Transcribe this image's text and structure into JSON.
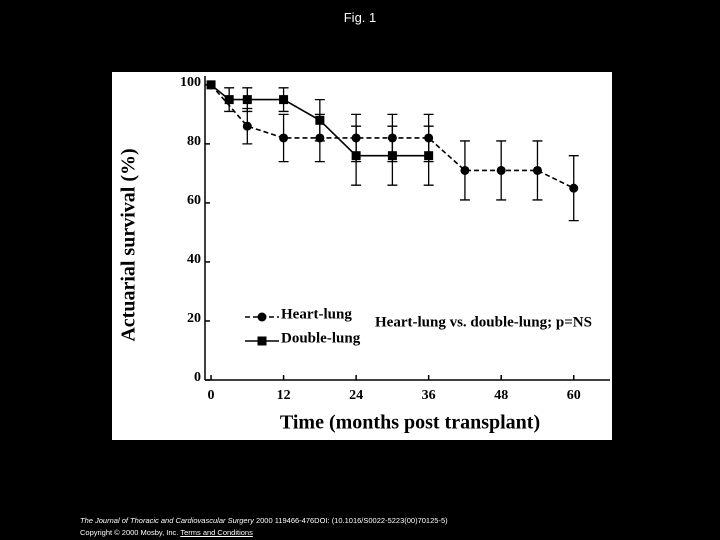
{
  "slide_title": "Fig. 1",
  "chart_data": {
    "type": "line",
    "ylabel": "Actuarial survival (%)",
    "xlabel": "Time (months post transplant)",
    "annotation": "Heart-lung vs. double-lung; p=NS",
    "series": [
      {
        "name": "Heart-lung",
        "color": "#000000",
        "marker": "circle",
        "line_style": "dashed",
        "x": [
          0,
          6,
          12,
          18,
          24,
          30,
          36,
          42,
          48,
          54,
          60
        ],
        "values": [
          100,
          86,
          82,
          82,
          82,
          82,
          82,
          71,
          71,
          71,
          65
        ],
        "errors": [
          0,
          6,
          8,
          8,
          8,
          8,
          8,
          10,
          10,
          10,
          11
        ]
      },
      {
        "name": "Double-lung",
        "color": "#000000",
        "marker": "square",
        "line_style": "solid",
        "x": [
          0,
          3,
          6,
          12,
          18,
          24,
          30,
          36
        ],
        "values": [
          100,
          95,
          95,
          95,
          88,
          76,
          76,
          76
        ],
        "errors": [
          0,
          4,
          4,
          4,
          7,
          10,
          10,
          10
        ]
      }
    ],
    "xlim": [
      -1,
      66
    ],
    "ylim": [
      0,
      103
    ],
    "xticks": [
      0,
      12,
      24,
      36,
      48,
      60
    ],
    "yticks": [
      0,
      20,
      40,
      60,
      80,
      100
    ],
    "legend": "lower left"
  },
  "footer": {
    "journal": "The Journal of Thoracic and Cardiovascular Surgery",
    "citation": "2000 119466-476DOI: (10.1016/S0022-5223(00)70125-5)",
    "copyright": "Copyright © 2000 Mosby, Inc.",
    "link": "Terms and Conditions"
  }
}
